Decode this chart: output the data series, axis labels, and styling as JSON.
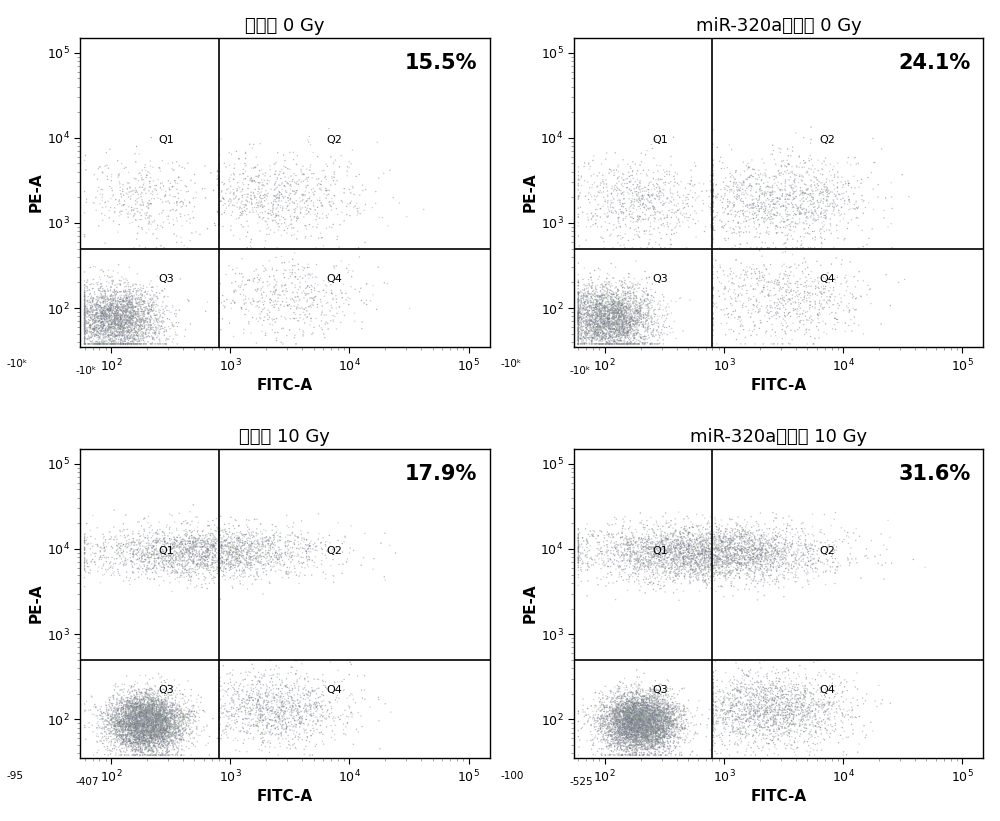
{
  "panels": [
    {
      "title": "对照组 0 Gy",
      "percentage": "15.5%",
      "gate_x_log": 800,
      "gate_y_log": 500,
      "neg_x_label": "-10ᵏ",
      "neg_y_label": "-10ᵏ",
      "xmin": 55,
      "xmax": 150000,
      "ymin": 35,
      "ymax": 150000
    },
    {
      "title": "miR-320a核酸组 0 Gy",
      "percentage": "24.1%",
      "gate_x_log": 800,
      "gate_y_log": 500,
      "neg_x_label": "-10ᵏ",
      "neg_y_label": "-10ᵏ",
      "xmin": 55,
      "xmax": 150000,
      "ymin": 35,
      "ymax": 150000
    },
    {
      "title": "对照组 10 Gy",
      "percentage": "17.9%",
      "gate_x_log": 800,
      "gate_y_log": 500,
      "neg_x_label": "-407",
      "neg_y_label": "-95",
      "xmin": 55,
      "xmax": 150000,
      "ymin": 35,
      "ymax": 150000
    },
    {
      "title": "miR-320a核酸组 10 Gy",
      "percentage": "31.6%",
      "gate_x_log": 800,
      "gate_y_log": 500,
      "neg_x_label": "-525",
      "neg_y_label": "-100",
      "xmin": 55,
      "xmax": 150000,
      "ymin": 35,
      "ymax": 150000
    }
  ],
  "x_label": "FITC-A",
  "y_label": "PE-A",
  "bg_color": "#ffffff",
  "dot_colors": [
    "#7a7a9a",
    "#6a6a7a",
    "#9a9aaa",
    "#7a9a7a",
    "#aaaaaa"
  ],
  "title_fontsize": 13,
  "label_fontsize": 11,
  "tick_fontsize": 9,
  "pct_fontsize": 15,
  "q_fontsize": 8
}
